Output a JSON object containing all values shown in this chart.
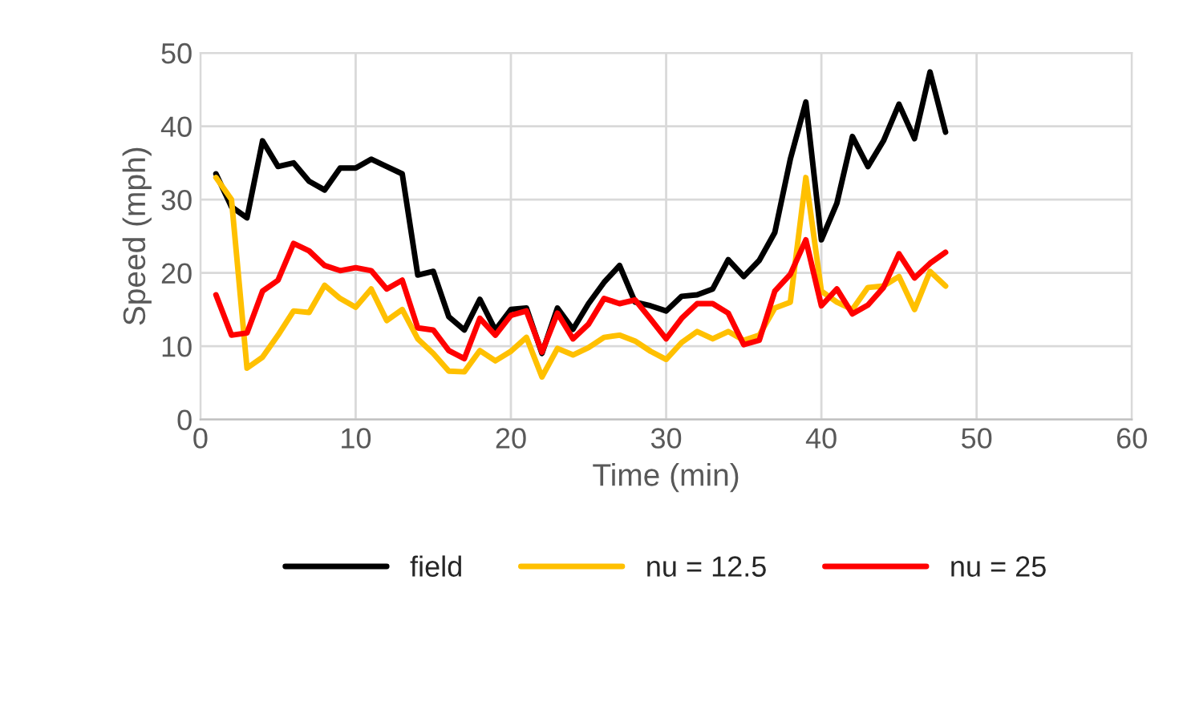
{
  "chart_data": {
    "type": "line",
    "xlabel": "Time (min)",
    "ylabel": "Speed (mph)",
    "x": [
      1,
      2,
      3,
      4,
      5,
      6,
      7,
      8,
      9,
      10,
      11,
      12,
      13,
      14,
      15,
      16,
      17,
      18,
      19,
      20,
      21,
      22,
      23,
      24,
      25,
      26,
      27,
      28,
      29,
      30,
      31,
      32,
      33,
      34,
      35,
      36,
      37,
      38,
      39,
      40,
      41,
      42,
      43,
      44,
      45,
      46,
      47,
      48
    ],
    "series": [
      {
        "name": "field",
        "color": "#000000",
        "values": [
          33.5,
          29,
          27.5,
          38,
          34.5,
          35,
          32.5,
          31.3,
          34.3,
          34.3,
          35.5,
          34.5,
          33.5,
          19.7,
          20.2,
          14,
          12.2,
          16.4,
          12.2,
          15,
          15.2,
          9,
          15.2,
          12.3,
          15.8,
          18.7,
          21,
          16,
          15.5,
          14.8,
          16.8,
          17,
          17.8,
          21.8,
          19.5,
          21.7,
          25.5,
          35.5,
          43.3,
          24.5,
          29.5,
          38.6,
          34.5,
          38,
          43,
          38.3,
          47.4,
          39.2
        ]
      },
      {
        "name": "nu = 12.5",
        "color": "#ffc000",
        "values": [
          33,
          30,
          7,
          8.5,
          11.5,
          14.8,
          14.6,
          18.3,
          16.5,
          15.3,
          17.8,
          13.5,
          15,
          11,
          9,
          6.6,
          6.5,
          9.4,
          8,
          9.3,
          11.2,
          5.8,
          9.7,
          8.8,
          9.8,
          11.2,
          11.5,
          10.7,
          9.3,
          8.2,
          10.5,
          12,
          11,
          12,
          10.8,
          11.5,
          15.2,
          16,
          33,
          17.5,
          16,
          15,
          18,
          18.2,
          19.5,
          15,
          20.2,
          18.2
        ]
      },
      {
        "name": "nu = 25",
        "color": "#ff0000",
        "values": [
          17,
          11.5,
          11.8,
          17.5,
          19,
          24,
          23,
          21,
          20.3,
          20.7,
          20.3,
          17.8,
          19,
          12.5,
          12.2,
          9.4,
          8.3,
          13.8,
          11.5,
          14.2,
          14.8,
          9.2,
          14.5,
          11,
          13,
          16.5,
          15.8,
          16.3,
          13.7,
          11,
          13.8,
          15.8,
          15.8,
          14.5,
          10.2,
          10.8,
          17.5,
          19.8,
          24.5,
          15.5,
          17.8,
          14.4,
          15.6,
          18,
          22.6,
          19.3,
          21.3,
          22.8
        ]
      }
    ],
    "xlim": [
      0,
      60
    ],
    "xticks": [
      0,
      10,
      20,
      30,
      40,
      50,
      60
    ],
    "ylim": [
      0,
      50
    ],
    "yticks": [
      0,
      10,
      20,
      30,
      40,
      50
    ],
    "grid": true,
    "legend": "bottom",
    "marker": "none",
    "line_style": "solid"
  }
}
